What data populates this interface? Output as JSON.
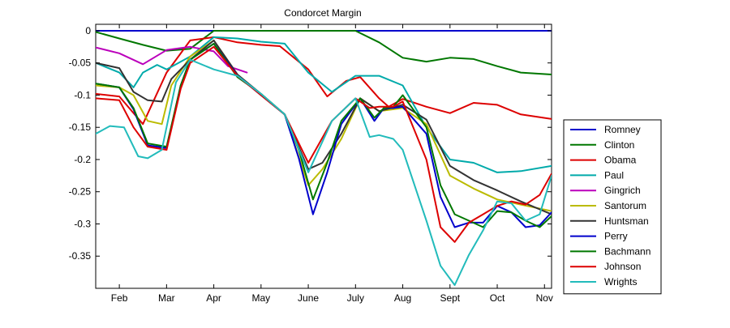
{
  "chart_data": {
    "type": "line",
    "title": "Condorcet Margin",
    "xlabel": "",
    "ylabel": "",
    "xlim": [
      0,
      9.65
    ],
    "ylim": [
      -0.4,
      0.01
    ],
    "x_tick_labels": [
      {
        "x": 0.5,
        "label": "Feb"
      },
      {
        "x": 1.5,
        "label": "Mar"
      },
      {
        "x": 2.5,
        "label": "Apr"
      },
      {
        "x": 3.5,
        "label": "May"
      },
      {
        "x": 4.5,
        "label": "June"
      },
      {
        "x": 5.5,
        "label": "July"
      },
      {
        "x": 6.5,
        "label": "Aug"
      },
      {
        "x": 7.5,
        "label": "Sept"
      },
      {
        "x": 8.5,
        "label": "Oct"
      },
      {
        "x": 9.5,
        "label": "Nov"
      }
    ],
    "y_ticks": [
      0,
      -0.05,
      -0.1,
      -0.15,
      -0.2,
      -0.25,
      -0.3,
      -0.35
    ],
    "y_tick_labels": [
      "0",
      "-0.05",
      "-0.1",
      "-0.15",
      "-0.2",
      "-0.25",
      "-0.3",
      "-0.35"
    ],
    "grid": false,
    "legend_position": "right",
    "series": [
      {
        "name": "Romney",
        "color": "#0000cc",
        "x": [
          0,
          9.65
        ],
        "y": [
          0,
          0
        ]
      },
      {
        "name": "Clinton",
        "color": "#007700",
        "x": [
          0,
          0.5,
          1.0,
          1.5,
          2.0,
          2.5,
          3.0,
          3.5,
          4.0,
          4.5,
          5.0,
          5.5,
          6.0,
          6.5,
          7.0,
          7.5,
          8.0,
          8.5,
          9.0,
          9.65
        ],
        "y": [
          -0.002,
          -0.012,
          -0.022,
          -0.031,
          -0.028,
          0,
          0,
          0,
          0,
          0,
          0,
          0,
          -0.018,
          -0.042,
          -0.048,
          -0.042,
          -0.044,
          -0.055,
          -0.065,
          -0.068
        ]
      },
      {
        "name": "Obama",
        "color": "#dd0000",
        "x": [
          0,
          0.5,
          1.0,
          1.5,
          2.0,
          2.5,
          3.0,
          3.5,
          3.9,
          4.5,
          4.9,
          5.3,
          5.6,
          6.0,
          6.2,
          6.5,
          7.0,
          7.5,
          8.0,
          8.5,
          9.0,
          9.65
        ],
        "y": [
          -0.098,
          -0.102,
          -0.145,
          -0.065,
          -0.015,
          -0.01,
          -0.018,
          -0.022,
          -0.024,
          -0.06,
          -0.102,
          -0.078,
          -0.072,
          -0.105,
          -0.118,
          -0.106,
          -0.118,
          -0.128,
          -0.112,
          -0.115,
          -0.13,
          -0.137
        ]
      },
      {
        "name": "Paul",
        "color": "#00aaaa",
        "x": [
          0,
          0.5,
          0.8,
          1.0,
          1.3,
          1.5,
          2.0,
          2.5,
          3.0,
          3.5,
          4.0,
          4.5,
          5.0,
          5.5,
          6.0,
          6.5,
          7.0,
          7.5,
          8.0,
          8.5,
          9.0,
          9.65
        ],
        "y": [
          -0.05,
          -0.065,
          -0.088,
          -0.065,
          -0.053,
          -0.06,
          -0.04,
          -0.01,
          -0.012,
          -0.017,
          -0.02,
          -0.065,
          -0.095,
          -0.07,
          -0.07,
          -0.085,
          -0.15,
          -0.2,
          -0.205,
          -0.22,
          -0.218,
          -0.21
        ]
      },
      {
        "name": "Gingrich",
        "color": "#bb00bb",
        "x": [
          0,
          0.5,
          1.0,
          1.5,
          2.0,
          2.5,
          2.8,
          3.2
        ],
        "y": [
          -0.026,
          -0.035,
          -0.052,
          -0.03,
          -0.025,
          -0.032,
          -0.055,
          -0.065
        ]
      },
      {
        "name": "Santorum",
        "color": "#bbbb00",
        "x": [
          0,
          0.5,
          0.8,
          1.1,
          1.4,
          1.6,
          2.0,
          2.5,
          3.0,
          3.5,
          4.0,
          4.5,
          4.8,
          5.2,
          5.6,
          6.0,
          6.5,
          7.0,
          7.5,
          8.0,
          8.5,
          9.0,
          9.65
        ],
        "y": [
          -0.085,
          -0.088,
          -0.1,
          -0.14,
          -0.145,
          -0.085,
          -0.04,
          -0.015,
          -0.068,
          -0.1,
          -0.13,
          -0.24,
          -0.215,
          -0.168,
          -0.105,
          -0.125,
          -0.12,
          -0.145,
          -0.225,
          -0.245,
          -0.262,
          -0.27,
          -0.28
        ]
      },
      {
        "name": "Huntsman",
        "color": "#333333",
        "x": [
          0,
          0.5,
          0.8,
          1.1,
          1.4,
          1.6,
          2.0,
          2.5,
          3.0,
          3.5,
          4.0,
          4.5,
          4.8,
          5.2,
          5.6,
          6.0,
          6.5,
          7.0,
          7.5,
          8.0,
          8.5,
          9.0,
          9.65
        ],
        "y": [
          -0.05,
          -0.058,
          -0.095,
          -0.108,
          -0.11,
          -0.075,
          -0.045,
          -0.015,
          -0.068,
          -0.098,
          -0.13,
          -0.215,
          -0.205,
          -0.16,
          -0.105,
          -0.125,
          -0.115,
          -0.138,
          -0.21,
          -0.232,
          -0.248,
          -0.265,
          -0.285
        ]
      },
      {
        "name": "Perry",
        "color": "#0000cc",
        "x": [
          0,
          0.5,
          0.8,
          1.1,
          1.5,
          1.8,
          2.0,
          2.5,
          3.0,
          3.5,
          4.0,
          4.3,
          4.6,
          4.9,
          5.2,
          5.6,
          5.9,
          6.1,
          6.3,
          6.5,
          7.0,
          7.3,
          7.6,
          7.9,
          8.2,
          8.5,
          8.8,
          9.1,
          9.4,
          9.65
        ],
        "y": [
          -0.082,
          -0.088,
          -0.122,
          -0.178,
          -0.182,
          -0.085,
          -0.045,
          -0.02,
          -0.07,
          -0.1,
          -0.13,
          -0.198,
          -0.285,
          -0.22,
          -0.145,
          -0.105,
          -0.14,
          -0.12,
          -0.12,
          -0.118,
          -0.16,
          -0.258,
          -0.305,
          -0.298,
          -0.298,
          -0.272,
          -0.282,
          -0.305,
          -0.302,
          -0.282
        ]
      },
      {
        "name": "Bachmann",
        "color": "#007700",
        "x": [
          0,
          0.5,
          0.8,
          1.1,
          1.5,
          1.8,
          2.0,
          2.5,
          3.0,
          3.5,
          4.0,
          4.3,
          4.6,
          4.9,
          5.2,
          5.6,
          5.9,
          6.1,
          6.3,
          6.5,
          7.0,
          7.3,
          7.6,
          7.9,
          8.2,
          8.5,
          8.8,
          9.1,
          9.4,
          9.65
        ],
        "y": [
          -0.082,
          -0.088,
          -0.12,
          -0.175,
          -0.18,
          -0.085,
          -0.045,
          -0.02,
          -0.072,
          -0.098,
          -0.13,
          -0.185,
          -0.262,
          -0.205,
          -0.14,
          -0.105,
          -0.135,
          -0.12,
          -0.118,
          -0.1,
          -0.15,
          -0.24,
          -0.285,
          -0.295,
          -0.305,
          -0.28,
          -0.282,
          -0.295,
          -0.305,
          -0.288
        ]
      },
      {
        "name": "Johnson",
        "color": "#dd0000",
        "x": [
          0,
          0.5,
          0.8,
          1.1,
          1.5,
          1.8,
          2.0,
          2.5,
          3.0,
          3.5,
          4.0,
          4.5,
          5.0,
          5.5,
          5.8,
          6.0,
          6.3,
          6.5,
          7.0,
          7.3,
          7.6,
          7.9,
          8.2,
          8.5,
          8.8,
          9.1,
          9.4,
          9.65
        ],
        "y": [
          -0.105,
          -0.108,
          -0.15,
          -0.18,
          -0.185,
          -0.09,
          -0.05,
          -0.025,
          -0.07,
          -0.1,
          -0.13,
          -0.205,
          -0.14,
          -0.105,
          -0.12,
          -0.118,
          -0.118,
          -0.11,
          -0.2,
          -0.305,
          -0.328,
          -0.298,
          -0.285,
          -0.272,
          -0.265,
          -0.27,
          -0.255,
          -0.222
        ]
      },
      {
        "name": "Wrights",
        "color": "#22bbbb",
        "x": [
          0,
          0.3,
          0.6,
          0.9,
          1.1,
          1.4,
          1.7,
          2.0,
          2.5,
          3.0,
          3.5,
          4.0,
          4.5,
          5.0,
          5.5,
          5.8,
          6.0,
          6.3,
          6.5,
          7.0,
          7.3,
          7.6,
          7.9,
          8.2,
          8.5,
          8.8,
          9.1,
          9.4,
          9.65
        ],
        "y": [
          -0.16,
          -0.148,
          -0.15,
          -0.195,
          -0.198,
          -0.185,
          -0.08,
          -0.045,
          -0.06,
          -0.07,
          -0.098,
          -0.13,
          -0.22,
          -0.14,
          -0.105,
          -0.165,
          -0.162,
          -0.168,
          -0.185,
          -0.295,
          -0.365,
          -0.395,
          -0.348,
          -0.31,
          -0.265,
          -0.268,
          -0.295,
          -0.285,
          -0.225
        ]
      }
    ]
  }
}
